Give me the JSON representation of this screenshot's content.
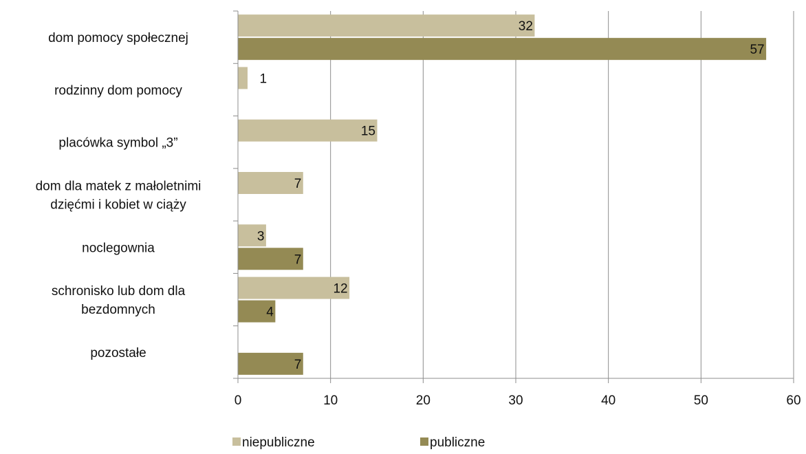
{
  "chart_data": {
    "type": "bar",
    "orientation": "horizontal",
    "categories": [
      "dom pomocy społecznej",
      "rodzinny dom pomocy",
      "placówka symbol „3”",
      "dom dla matek z małoletnimi dziećmi i kobiet w ciąży",
      "noclegownia",
      "schronisko lub dom dla bezdomnych",
      "pozostałe"
    ],
    "category_lines": [
      [
        "dom pomocy społecznej"
      ],
      [
        "rodzinny dom pomocy"
      ],
      [
        "placówka symbol „3”"
      ],
      [
        "dom dla matek z małoletnimi",
        "dzięćmi i kobiet w ciąży"
      ],
      [
        "noclegownia"
      ],
      [
        "schronisko lub dom dla",
        "bezdomnych"
      ],
      [
        "pozostałe"
      ]
    ],
    "series": [
      {
        "name": "niepubliczne",
        "color": "#c8bf9d",
        "values": [
          32,
          1,
          15,
          7,
          3,
          12,
          null
        ]
      },
      {
        "name": "publiczne",
        "color": "#948a54",
        "values": [
          57,
          null,
          null,
          null,
          7,
          4,
          7
        ]
      }
    ],
    "xlim": [
      0,
      60
    ],
    "xticks": [
      0,
      10,
      20,
      30,
      40,
      50,
      60
    ],
    "grid": true,
    "data_labels": true,
    "legend_position": "bottom"
  }
}
